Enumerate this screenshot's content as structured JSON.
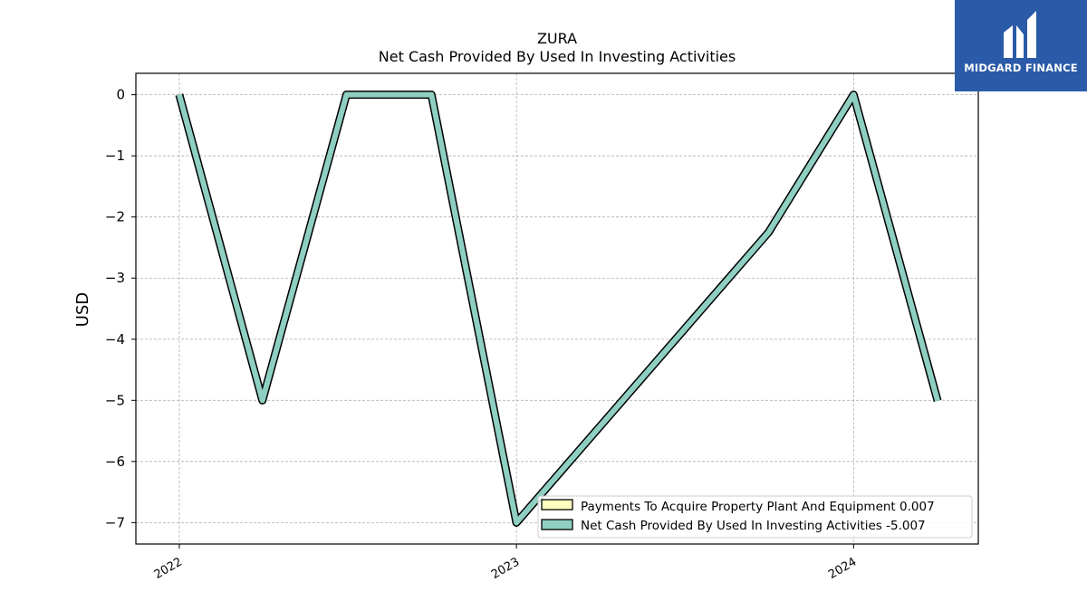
{
  "chart_data": {
    "type": "line",
    "title": "ZURA",
    "subtitle": "Net Cash Provided By Used In Investing Activities",
    "ylabel": "USD",
    "xlabel": "",
    "x_ticks": [
      "2022",
      "2023",
      "2024"
    ],
    "y_ticks": [
      "0",
      "−1",
      "−2",
      "−3",
      "−4",
      "−5",
      "−6",
      "−7"
    ],
    "ylim": [
      -7.35,
      0.35
    ],
    "xlim": [
      "2021-11-15",
      "2024-05-15"
    ],
    "grid": true,
    "legend_position": "lower-right",
    "series": [
      {
        "name": "Payments To Acquire Property Plant And Equipment",
        "legend_label": "Payments To Acquire Property Plant And Equipment  0.007",
        "color": "#ffffbf",
        "x": [],
        "values": []
      },
      {
        "name": "Net Cash Provided By Used In Investing Activities",
        "legend_label": "Net Cash Provided By Used In Investing Activities  -5.007",
        "color": "#8ecfc2",
        "x": [
          "2022-01-01",
          "2022-04-01",
          "2022-07-01",
          "2022-10-01",
          "2023-01-01",
          "2023-10-01",
          "2024-01-01",
          "2024-04-01"
        ],
        "values": [
          0.0,
          -5.0,
          0.0,
          0.0,
          -7.0,
          -2.25,
          0.0,
          -5.007
        ]
      }
    ]
  },
  "logo": {
    "text": "MIDGARD FINANCE",
    "color": "#2b5aa8"
  }
}
